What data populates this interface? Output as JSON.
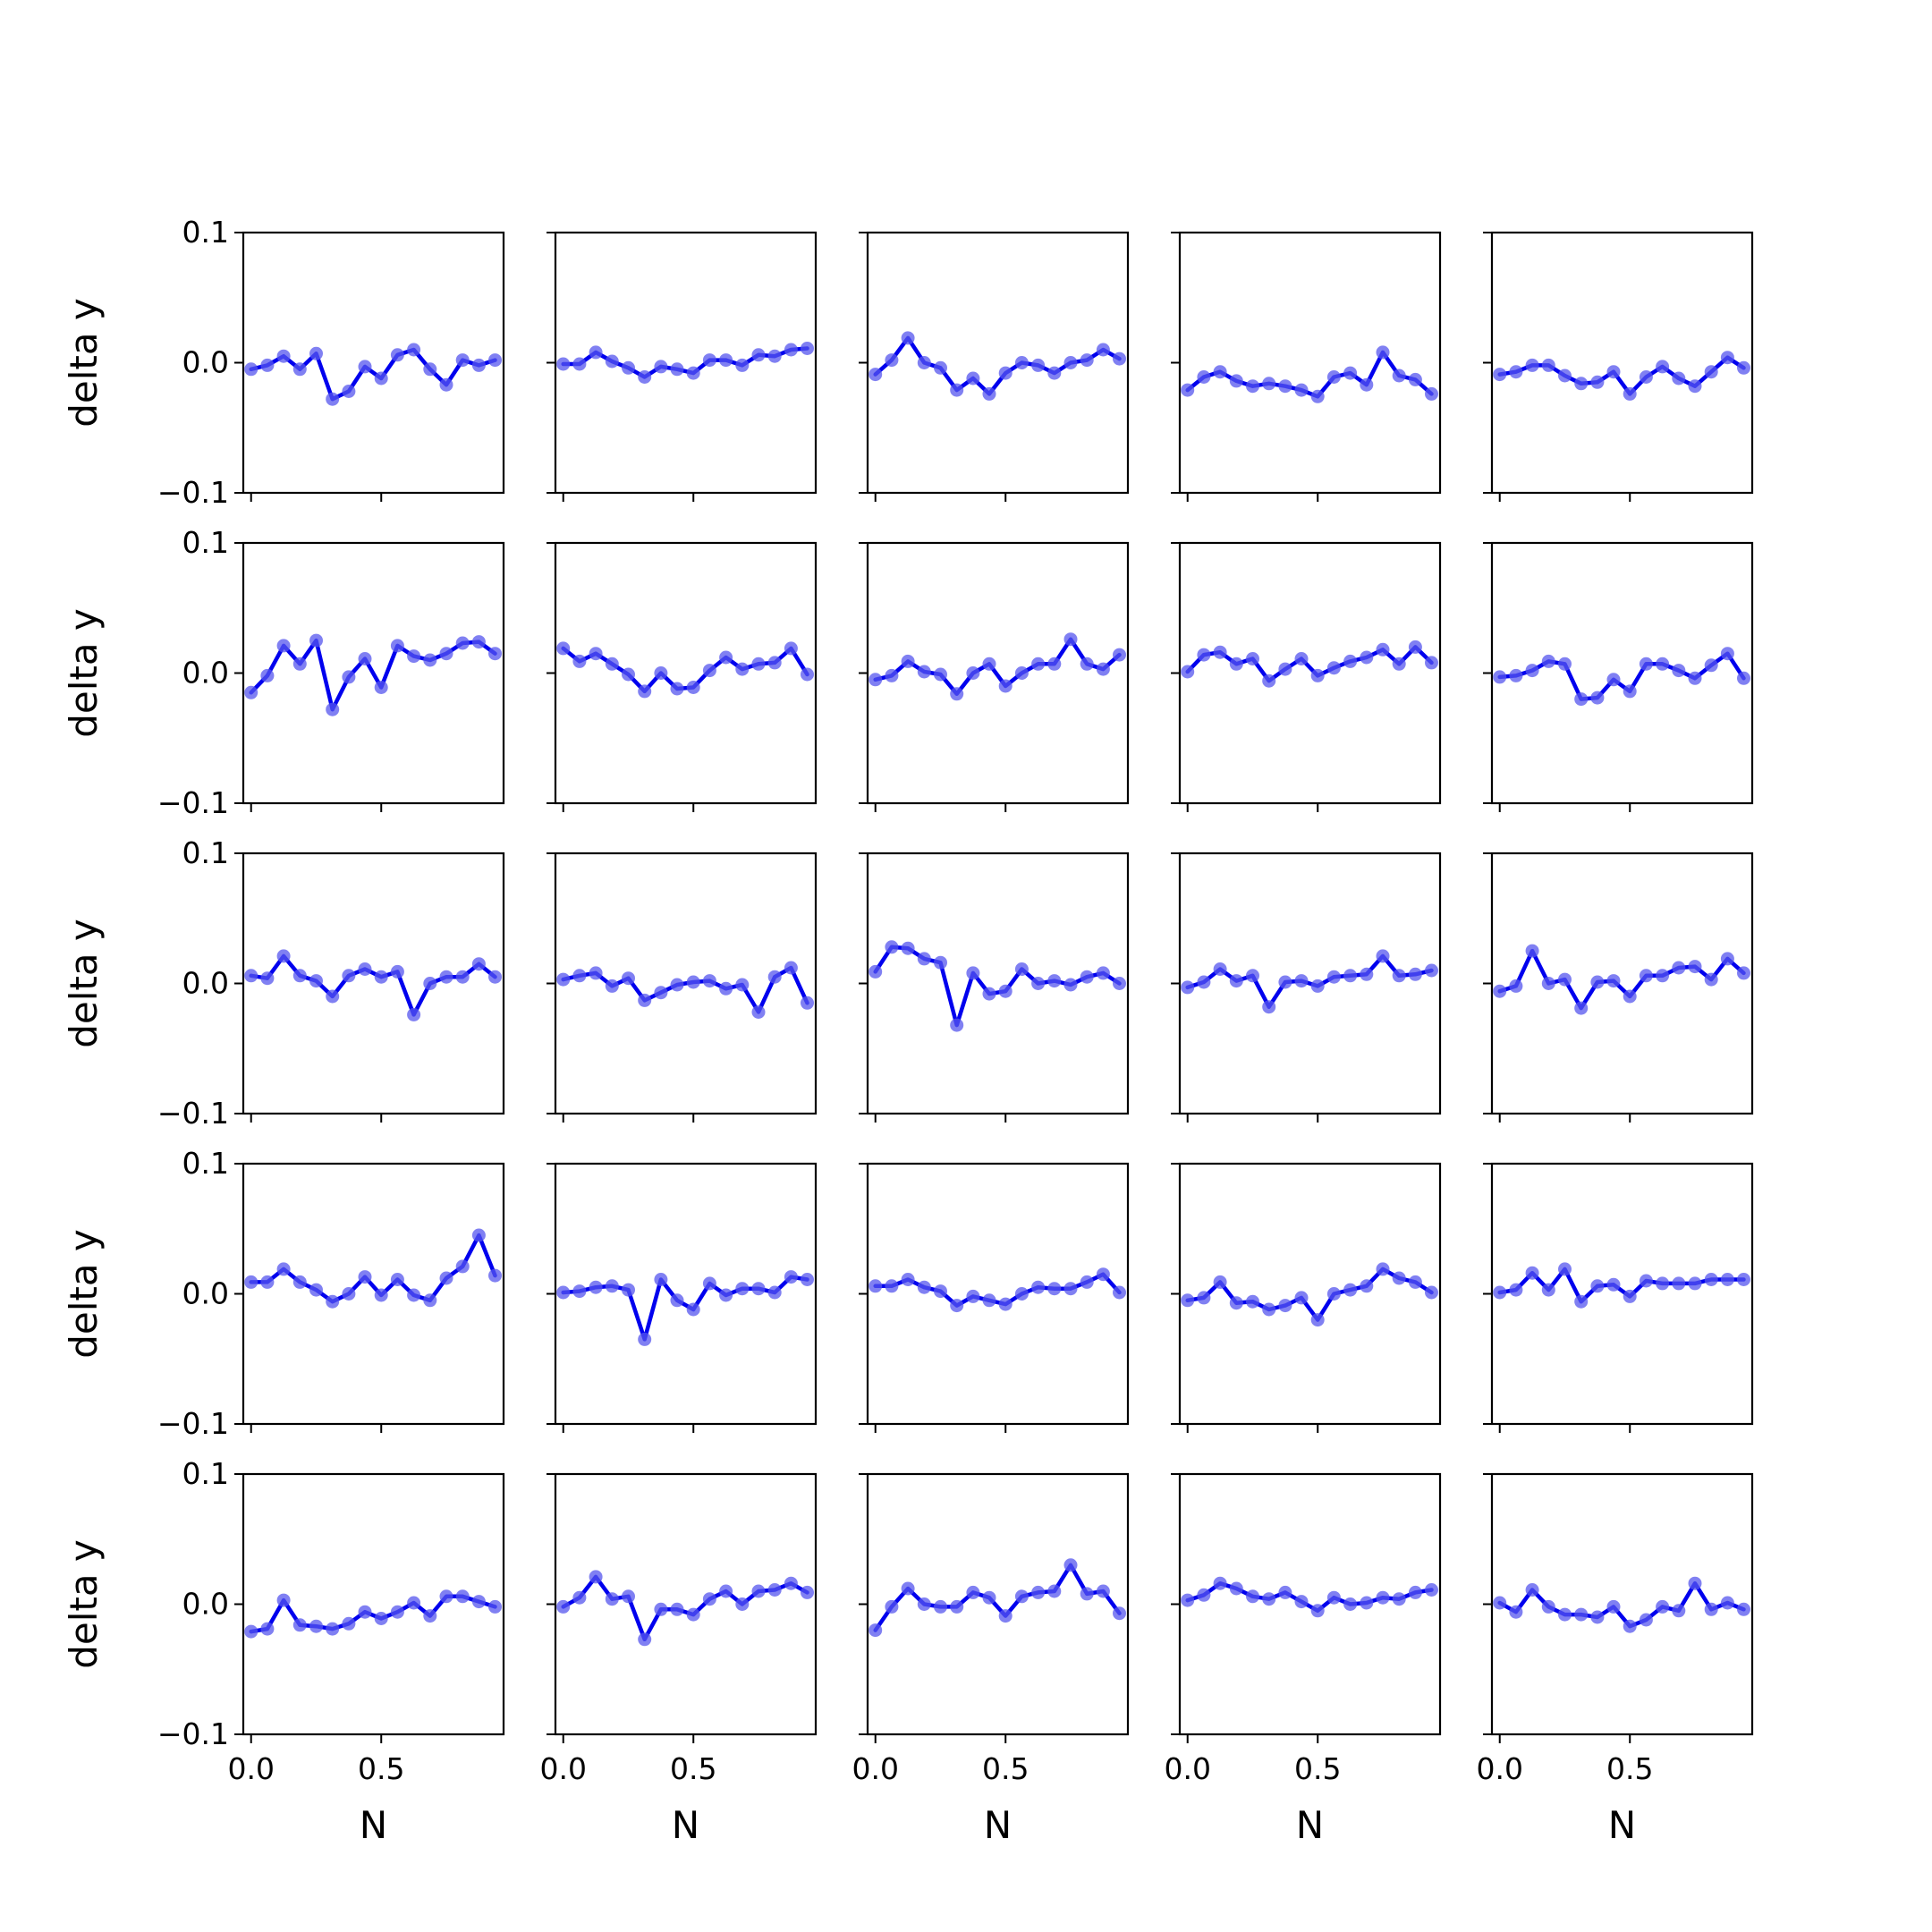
{
  "chart_data": {
    "type": "line",
    "layout": {
      "rows": 5,
      "cols": 5
    },
    "shared_x": true,
    "shared_y": true,
    "xlabel": "N",
    "ylabel": "delta y",
    "xlim": [
      -0.03,
      0.97
    ],
    "ylim": [
      -0.1,
      0.1
    ],
    "xticks": [
      0.0,
      0.5
    ],
    "xtick_labels": [
      "0.0",
      "0.5"
    ],
    "yticks": [
      -0.1,
      0.0,
      0.1
    ],
    "ytick_labels": [
      "−0.1",
      "0.0",
      "0.1"
    ],
    "line_color": "#0000ee",
    "marker_color": "#5555ee",
    "x": [
      0.0,
      0.0625,
      0.125,
      0.1875,
      0.25,
      0.3125,
      0.375,
      0.4375,
      0.5,
      0.5625,
      0.625,
      0.6875,
      0.75,
      0.8125,
      0.875,
      0.9375
    ],
    "panels": [
      {
        "row": 0,
        "col": 0,
        "values": [
          -0.005,
          -0.002,
          0.005,
          -0.005,
          0.007,
          -0.028,
          -0.022,
          -0.003,
          -0.012,
          0.006,
          0.01,
          -0.005,
          -0.017,
          0.002,
          -0.002,
          0.002
        ]
      },
      {
        "row": 0,
        "col": 1,
        "values": [
          -0.001,
          -0.001,
          0.008,
          0.001,
          -0.004,
          -0.011,
          -0.003,
          -0.005,
          -0.008,
          0.002,
          0.002,
          -0.002,
          0.006,
          0.005,
          0.01,
          0.011
        ]
      },
      {
        "row": 0,
        "col": 2,
        "values": [
          -0.009,
          0.002,
          0.019,
          0.0,
          -0.004,
          -0.021,
          -0.012,
          -0.024,
          -0.008,
          0.0,
          -0.002,
          -0.008,
          0.0,
          0.002,
          0.01,
          0.003
        ]
      },
      {
        "row": 0,
        "col": 3,
        "values": [
          -0.021,
          -0.011,
          -0.007,
          -0.014,
          -0.018,
          -0.016,
          -0.018,
          -0.021,
          -0.026,
          -0.011,
          -0.008,
          -0.017,
          0.008,
          -0.01,
          -0.013,
          -0.024
        ]
      },
      {
        "row": 0,
        "col": 4,
        "values": [
          -0.009,
          -0.007,
          -0.002,
          -0.002,
          -0.01,
          -0.016,
          -0.015,
          -0.007,
          -0.024,
          -0.011,
          -0.003,
          -0.012,
          -0.018,
          -0.007,
          0.004,
          -0.004
        ]
      },
      {
        "row": 1,
        "col": 0,
        "values": [
          -0.015,
          -0.002,
          0.021,
          0.007,
          0.025,
          -0.028,
          -0.003,
          0.011,
          -0.011,
          0.021,
          0.013,
          0.01,
          0.015,
          0.023,
          0.024,
          0.015
        ]
      },
      {
        "row": 1,
        "col": 1,
        "values": [
          0.019,
          0.009,
          0.015,
          0.007,
          -0.001,
          -0.014,
          0.0,
          -0.012,
          -0.011,
          0.002,
          0.012,
          0.003,
          0.007,
          0.008,
          0.019,
          -0.001
        ]
      },
      {
        "row": 1,
        "col": 2,
        "values": [
          -0.005,
          -0.002,
          0.009,
          0.001,
          -0.001,
          -0.016,
          0.0,
          0.007,
          -0.01,
          0.0,
          0.007,
          0.007,
          0.026,
          0.007,
          0.003,
          0.014
        ]
      },
      {
        "row": 1,
        "col": 3,
        "values": [
          0.001,
          0.014,
          0.016,
          0.007,
          0.011,
          -0.006,
          0.003,
          0.011,
          -0.002,
          0.004,
          0.009,
          0.012,
          0.018,
          0.007,
          0.02,
          0.008
        ]
      },
      {
        "row": 1,
        "col": 4,
        "values": [
          -0.003,
          -0.002,
          0.002,
          0.009,
          0.007,
          -0.02,
          -0.019,
          -0.005,
          -0.014,
          0.007,
          0.007,
          0.002,
          -0.004,
          0.006,
          0.015,
          -0.004
        ]
      },
      {
        "row": 2,
        "col": 0,
        "values": [
          0.006,
          0.004,
          0.021,
          0.006,
          0.002,
          -0.01,
          0.006,
          0.011,
          0.005,
          0.009,
          -0.024,
          0.0,
          0.005,
          0.005,
          0.015,
          0.005
        ]
      },
      {
        "row": 2,
        "col": 1,
        "values": [
          0.003,
          0.006,
          0.008,
          -0.002,
          0.004,
          -0.013,
          -0.007,
          -0.001,
          0.001,
          0.002,
          -0.004,
          -0.001,
          -0.022,
          0.005,
          0.012,
          -0.015
        ]
      },
      {
        "row": 2,
        "col": 2,
        "values": [
          0.009,
          0.028,
          0.027,
          0.019,
          0.016,
          -0.032,
          0.008,
          -0.008,
          -0.006,
          0.011,
          0.0,
          0.002,
          -0.001,
          0.005,
          0.008,
          0.0
        ]
      },
      {
        "row": 2,
        "col": 3,
        "values": [
          -0.003,
          0.001,
          0.011,
          0.002,
          0.006,
          -0.018,
          0.001,
          0.002,
          -0.002,
          0.005,
          0.006,
          0.007,
          0.021,
          0.006,
          0.007,
          0.01
        ]
      },
      {
        "row": 2,
        "col": 4,
        "values": [
          -0.006,
          -0.002,
          0.025,
          0.0,
          0.003,
          -0.019,
          0.001,
          0.002,
          -0.01,
          0.006,
          0.006,
          0.012,
          0.013,
          0.003,
          0.019,
          0.008
        ]
      },
      {
        "row": 3,
        "col": 0,
        "values": [
          0.009,
          0.009,
          0.019,
          0.009,
          0.003,
          -0.006,
          0.0,
          0.013,
          -0.001,
          0.011,
          -0.001,
          -0.005,
          0.012,
          0.021,
          0.045,
          0.014
        ]
      },
      {
        "row": 3,
        "col": 1,
        "values": [
          0.001,
          0.002,
          0.005,
          0.006,
          0.003,
          -0.035,
          0.011,
          -0.005,
          -0.012,
          0.008,
          -0.001,
          0.004,
          0.004,
          0.001,
          0.013,
          0.011
        ]
      },
      {
        "row": 3,
        "col": 2,
        "values": [
          0.006,
          0.006,
          0.011,
          0.005,
          0.002,
          -0.009,
          -0.002,
          -0.005,
          -0.008,
          0.0,
          0.005,
          0.004,
          0.004,
          0.009,
          0.015,
          0.001
        ]
      },
      {
        "row": 3,
        "col": 3,
        "values": [
          -0.005,
          -0.003,
          0.009,
          -0.007,
          -0.006,
          -0.012,
          -0.009,
          -0.003,
          -0.02,
          0.0,
          0.003,
          0.006,
          0.019,
          0.012,
          0.009,
          0.001
        ]
      },
      {
        "row": 3,
        "col": 4,
        "values": [
          0.001,
          0.003,
          0.016,
          0.003,
          0.019,
          -0.006,
          0.006,
          0.007,
          -0.002,
          0.01,
          0.008,
          0.008,
          0.008,
          0.011,
          0.011,
          0.011
        ]
      },
      {
        "row": 4,
        "col": 0,
        "values": [
          -0.021,
          -0.019,
          0.003,
          -0.016,
          -0.017,
          -0.019,
          -0.015,
          -0.006,
          -0.011,
          -0.006,
          0.001,
          -0.009,
          0.006,
          0.006,
          0.002,
          -0.002
        ]
      },
      {
        "row": 4,
        "col": 1,
        "values": [
          -0.002,
          0.005,
          0.021,
          0.004,
          0.006,
          -0.027,
          -0.004,
          -0.004,
          -0.008,
          0.004,
          0.01,
          0.0,
          0.01,
          0.011,
          0.016,
          0.009
        ]
      },
      {
        "row": 4,
        "col": 2,
        "values": [
          -0.02,
          -0.002,
          0.012,
          0.0,
          -0.002,
          -0.002,
          0.009,
          0.005,
          -0.009,
          0.006,
          0.009,
          0.01,
          0.03,
          0.008,
          0.01,
          -0.007
        ]
      },
      {
        "row": 4,
        "col": 3,
        "values": [
          0.003,
          0.007,
          0.016,
          0.012,
          0.006,
          0.004,
          0.009,
          0.002,
          -0.005,
          0.005,
          0.0,
          0.001,
          0.005,
          0.004,
          0.009,
          0.011
        ]
      },
      {
        "row": 4,
        "col": 4,
        "values": [
          0.001,
          -0.006,
          0.011,
          -0.002,
          -0.008,
          -0.008,
          -0.01,
          -0.002,
          -0.017,
          -0.012,
          -0.002,
          -0.005,
          0.016,
          -0.004,
          0.001,
          -0.004
        ]
      }
    ]
  }
}
